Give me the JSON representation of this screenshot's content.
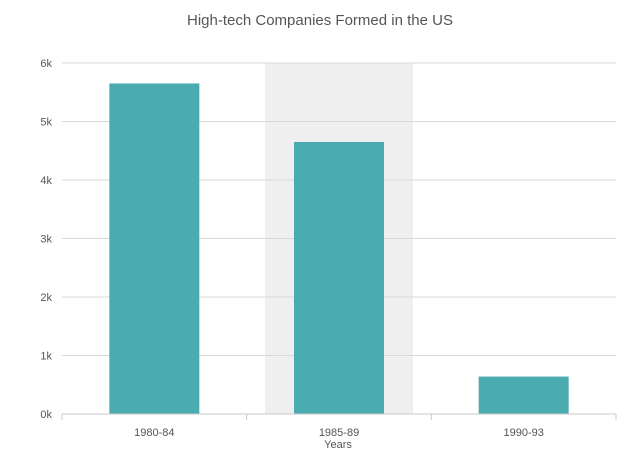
{
  "chart_data": {
    "type": "bar",
    "title": "High-tech Companies Formed in the US",
    "xlabel": "Years",
    "ylabel": "",
    "categories": [
      "1980-84",
      "1985-89",
      "1990-93"
    ],
    "values": [
      5650,
      4650,
      640
    ],
    "ylim": [
      0,
      6000
    ],
    "yticks": [
      {
        "value": 0,
        "label": "0k"
      },
      {
        "value": 1000,
        "label": "1k"
      },
      {
        "value": 2000,
        "label": "2k"
      },
      {
        "value": 3000,
        "label": "3k"
      },
      {
        "value": 4000,
        "label": "4k"
      },
      {
        "value": 5000,
        "label": "5k"
      },
      {
        "value": 6000,
        "label": "6k"
      }
    ],
    "highlighted_category": "1985-89",
    "grid": true,
    "legend": "none",
    "colors": {
      "bar": "#4aabb0",
      "highlight_band": "#efefef"
    }
  }
}
